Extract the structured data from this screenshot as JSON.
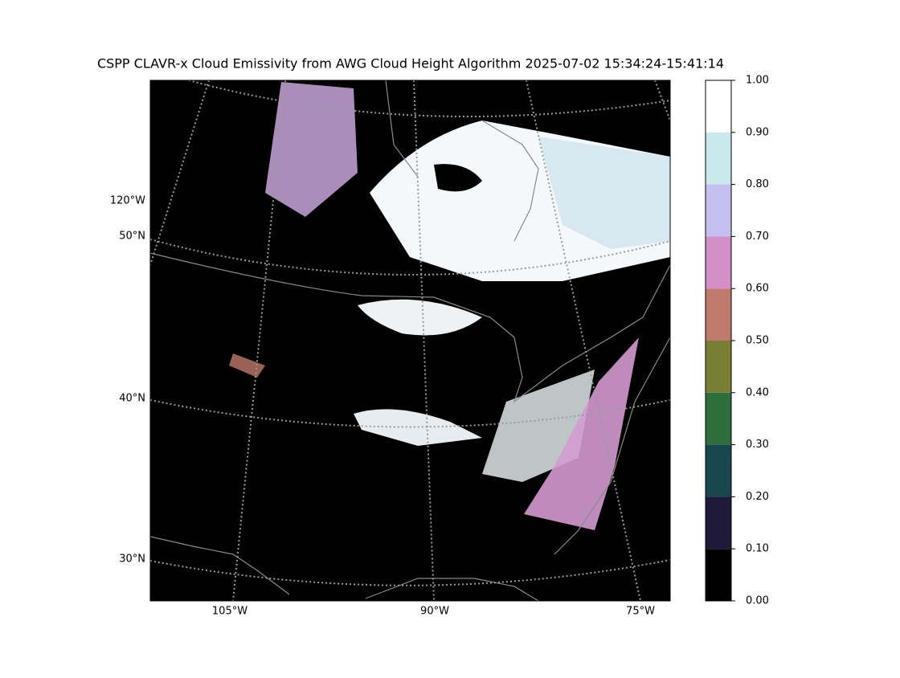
{
  "title": "CSPP CLAVR-x Cloud Emissivity from AWG Cloud Height Algorithm 2025-07-02 15:34:24-15:41:14",
  "map": {
    "lon_labels": [
      "105°W",
      "90°W",
      "75°W"
    ],
    "lat_labels": [
      "120°W",
      "50°N",
      "40°N",
      "30°N"
    ]
  },
  "colorbar": {
    "lim": [
      0,
      1
    ],
    "ticks": [
      {
        "value": 0,
        "label": "0.00"
      },
      {
        "value": 0.1,
        "label": "0.10"
      },
      {
        "value": 0.2,
        "label": "0.20"
      },
      {
        "value": 0.3,
        "label": "0.30"
      },
      {
        "value": 0.4,
        "label": "0.40"
      },
      {
        "value": 0.5,
        "label": "0.50"
      },
      {
        "value": 0.6,
        "label": "0.60"
      },
      {
        "value": 0.7,
        "label": "0.70"
      },
      {
        "value": 0.8,
        "label": "0.80"
      },
      {
        "value": 0.9,
        "label": "0.90"
      },
      {
        "value": 1,
        "label": "1.00"
      }
    ],
    "colors": [
      "#000000",
      "#1f1a3a",
      "#17464f",
      "#2e6e3a",
      "#7a7d35",
      "#c07a6a",
      "#d48fc8",
      "#c4bff0",
      "#cae9ea",
      "#ffffff"
    ]
  }
}
